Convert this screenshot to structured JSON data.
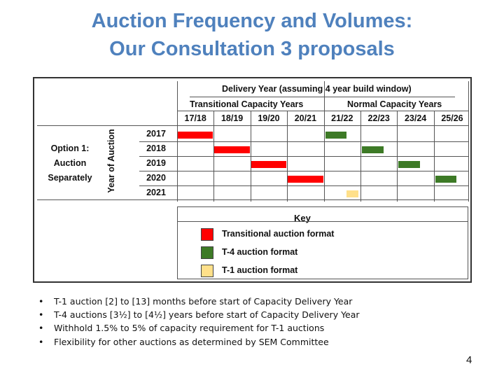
{
  "slide": {
    "title_line1": "Auction Frequency and Volumes:",
    "title_line2": "Our Consultation 3 proposals",
    "page_number": "4"
  },
  "diagram": {
    "delivery_header": "Delivery Year (assuming 4 year build window)",
    "transitional_header": "Transitional Capacity Years",
    "normal_header": "Normal Capacity Years",
    "delivery_years": [
      "17/18",
      "18/19",
      "19/20",
      "20/21",
      "21/22",
      "22/23",
      "23/24",
      "25/26"
    ],
    "auction_years": [
      "2017",
      "2018",
      "2019",
      "2020",
      "2021"
    ],
    "y_axis_label": "Year of Auction",
    "option_label": [
      "Option 1:",
      "Auction",
      "Separately"
    ],
    "bars": [
      {
        "auction_year": "2017",
        "delivery_year": "17/18",
        "format": "transitional"
      },
      {
        "auction_year": "2018",
        "delivery_year": "18/19",
        "format": "transitional"
      },
      {
        "auction_year": "2019",
        "delivery_year": "19/20",
        "format": "transitional"
      },
      {
        "auction_year": "2020",
        "delivery_year": "20/21",
        "format": "transitional"
      },
      {
        "auction_year": "2017",
        "delivery_year": "21/22",
        "format": "t4"
      },
      {
        "auction_year": "2018",
        "delivery_year": "22/23",
        "format": "t4"
      },
      {
        "auction_year": "2019",
        "delivery_year": "23/24",
        "format": "t4"
      },
      {
        "auction_year": "2020",
        "delivery_year": "25/26",
        "format": "t4"
      },
      {
        "auction_year": "2021",
        "delivery_year": "21/22",
        "format": "t1"
      }
    ],
    "key": {
      "title": "Key",
      "items": [
        {
          "id": "transitional",
          "label": "Transitional auction format",
          "color": "#ff0000"
        },
        {
          "id": "t4",
          "label": "T-4 auction format",
          "color": "#3d7a26"
        },
        {
          "id": "t1",
          "label": "T-1 auction format",
          "color": "#ffe08a"
        }
      ]
    }
  },
  "bullets": [
    "T-1 auction [2] to [13] months before start of Capacity Delivery Year",
    "T-4 auctions [3½] to [4½] years before start of Capacity Delivery Year",
    "Withhold 1.5% to 5% of capacity requirement for T-1 auctions",
    "Flexibility for other auctions as determined by SEM Committee"
  ]
}
